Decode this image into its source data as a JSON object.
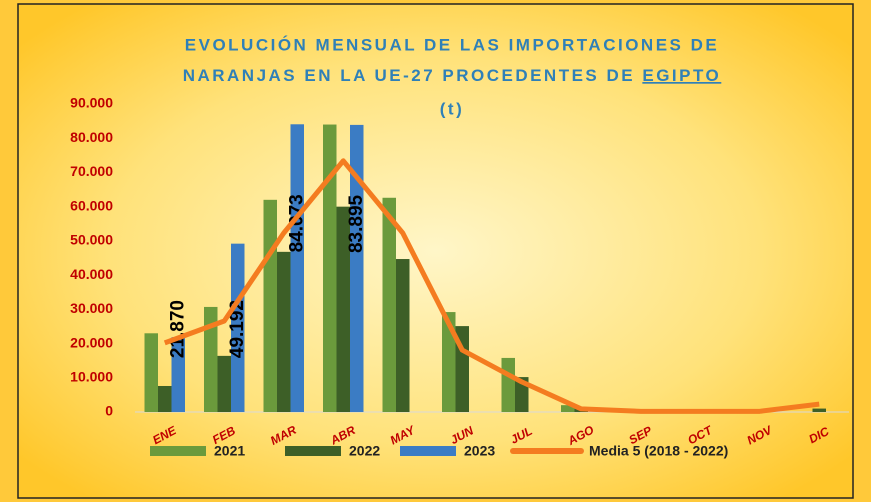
{
  "chart_data": {
    "type": "bar",
    "title": {
      "line1": "EVOLUCIÓN MENSUAL DE LAS IMPORTACIONES DE",
      "line2": "NARANJAS EN LA UE-27 PROCEDENTES DE",
      "highlight": "EGIPTO",
      "line3": "(t)"
    },
    "categories": [
      "ENE",
      "FEB",
      "MAR",
      "ABR",
      "MAY",
      "JUN",
      "JUL",
      "AGO",
      "SEP",
      "OCT",
      "NOV",
      "DIC"
    ],
    "series": [
      {
        "name": "2021",
        "type": "bar",
        "color": "#6b9a3c",
        "values": [
          23000,
          30700,
          62000,
          84000,
          62600,
          29200,
          15800,
          2000,
          0,
          0,
          0,
          0
        ]
      },
      {
        "name": "2022",
        "type": "bar",
        "color": "#3d5f27",
        "values": [
          7600,
          16400,
          46800,
          60000,
          44700,
          25100,
          10200,
          1000,
          0,
          0,
          0,
          1000
        ]
      },
      {
        "name": "2023",
        "type": "bar",
        "color": "#3b7cc4",
        "values": [
          21870,
          49192,
          84073,
          83895,
          null,
          null,
          null,
          null,
          null,
          null,
          null,
          null
        ],
        "value_labels": [
          "21.870",
          "49.192",
          "84.073",
          "83.895",
          null,
          null,
          null,
          null,
          null,
          null,
          null,
          null
        ]
      },
      {
        "name": "Media 5 (2018 - 2022)",
        "type": "line",
        "color": "#f47c20",
        "values": [
          20200,
          26600,
          52300,
          73400,
          52300,
          18100,
          8800,
          900,
          200,
          200,
          200,
          2300
        ]
      }
    ],
    "ylim": [
      0,
      90000
    ],
    "yticks": [
      0,
      {
        "value": 10000,
        "label": "10.000"
      },
      {
        "value": 20000,
        "label": "20.000"
      },
      {
        "value": 30000,
        "label": "30.000"
      },
      {
        "value": 40000,
        "label": "40.000"
      },
      {
        "value": 50000,
        "label": "50.000"
      },
      {
        "value": 60000,
        "label": "60.000"
      },
      {
        "value": 70000,
        "label": "70.000"
      },
      {
        "value": 80000,
        "label": "80.000"
      },
      {
        "value": 90000,
        "label": "90.000"
      }
    ],
    "legend": "bottom"
  }
}
